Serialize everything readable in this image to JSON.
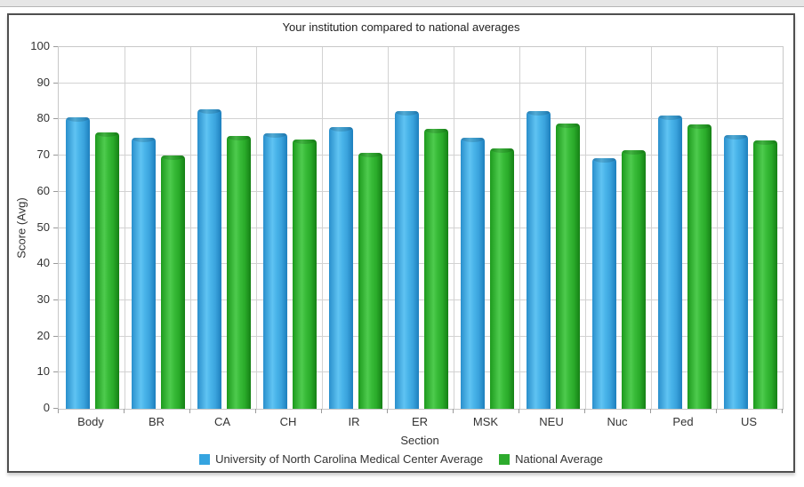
{
  "page": {
    "top_band": "decorative gray strip"
  },
  "chart_data": {
    "type": "bar",
    "title": "Your institution compared to national averages",
    "xlabel": "Section",
    "ylabel": "Score (Avg)",
    "ylim": [
      0,
      100
    ],
    "yticks": [
      0,
      10,
      20,
      30,
      40,
      50,
      60,
      70,
      80,
      90,
      100
    ],
    "grid": true,
    "legend_position": "bottom-center",
    "categories": [
      "Body",
      "BR",
      "CA",
      "CH",
      "IR",
      "ER",
      "MSK",
      "NEU",
      "Nuc",
      "Ped",
      "US"
    ],
    "series": [
      {
        "name": "University of North Carolina Medical Center Average",
        "color": "#35a4e0",
        "values": [
          80.5,
          74.9,
          82.8,
          76.1,
          77.9,
          82.4,
          74.9,
          82.4,
          69.2,
          81.2,
          75.6
        ]
      },
      {
        "name": "National Average",
        "color": "#2dab2d",
        "values": [
          76.3,
          70.0,
          75.4,
          74.4,
          70.8,
          77.4,
          71.9,
          78.9,
          71.6,
          78.6,
          74.2
        ]
      }
    ]
  },
  "colors": {
    "grid": "#d2d2d2",
    "axis_text": "#333333",
    "frame_border": "#4f4f4f",
    "institution_blue": "#35a4e0",
    "national_green": "#2dab2d"
  }
}
